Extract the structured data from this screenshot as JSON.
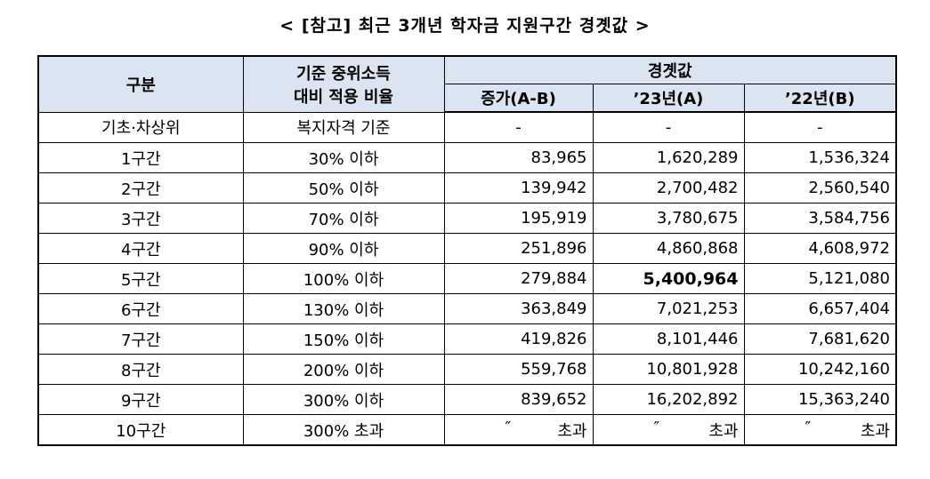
{
  "title": "< [참고] 최근 3개년 학자금 지원구간 경곗값 >",
  "header": {
    "category": "구분",
    "basis_line1": "기준 중위소득",
    "basis_line2": "대비 적용 비율",
    "threshold": "경곗값",
    "increase": "증가(A-B)",
    "y23": "’23년(A)",
    "y22": "’22년(B)"
  },
  "rows": [
    {
      "category": "기초·차상위",
      "basis": "복지자격 기준",
      "increase": "-",
      "y23": "-",
      "y22": "-"
    },
    {
      "category": "1구간",
      "basis": "30% 이하",
      "increase": "83,965",
      "y23": "1,620,289",
      "y22": "1,536,324"
    },
    {
      "category": "2구간",
      "basis": "50% 이하",
      "increase": "139,942",
      "y23": "2,700,482",
      "y22": "2,560,540"
    },
    {
      "category": "3구간",
      "basis": "70% 이하",
      "increase": "195,919",
      "y23": "3,780,675",
      "y22": "3,584,756"
    },
    {
      "category": "4구간",
      "basis": "90% 이하",
      "increase": "251,896",
      "y23": "4,860,868",
      "y22": "4,608,972"
    },
    {
      "category": "5구간",
      "basis": "100% 이하",
      "increase": "279,884",
      "y23": "5,400,964",
      "y22": "5,121,080"
    },
    {
      "category": "6구간",
      "basis": "130% 이하",
      "increase": "363,849",
      "y23": "7,021,253",
      "y22": "6,657,404"
    },
    {
      "category": "7구간",
      "basis": "150% 이하",
      "increase": "419,826",
      "y23": "8,101,446",
      "y22": "7,681,620"
    },
    {
      "category": "8구간",
      "basis": "200% 이하",
      "increase": "559,768",
      "y23": "10,801,928",
      "y22": "10,242,160"
    },
    {
      "category": "9구간",
      "basis": "300% 이하",
      "increase": "839,652",
      "y23": "16,202,892",
      "y22": "15,363,240"
    },
    {
      "category": "10구간",
      "basis": "300% 초과",
      "ditto": "″",
      "increase": "초과",
      "y23": "초과",
      "y22": "초과"
    }
  ]
}
